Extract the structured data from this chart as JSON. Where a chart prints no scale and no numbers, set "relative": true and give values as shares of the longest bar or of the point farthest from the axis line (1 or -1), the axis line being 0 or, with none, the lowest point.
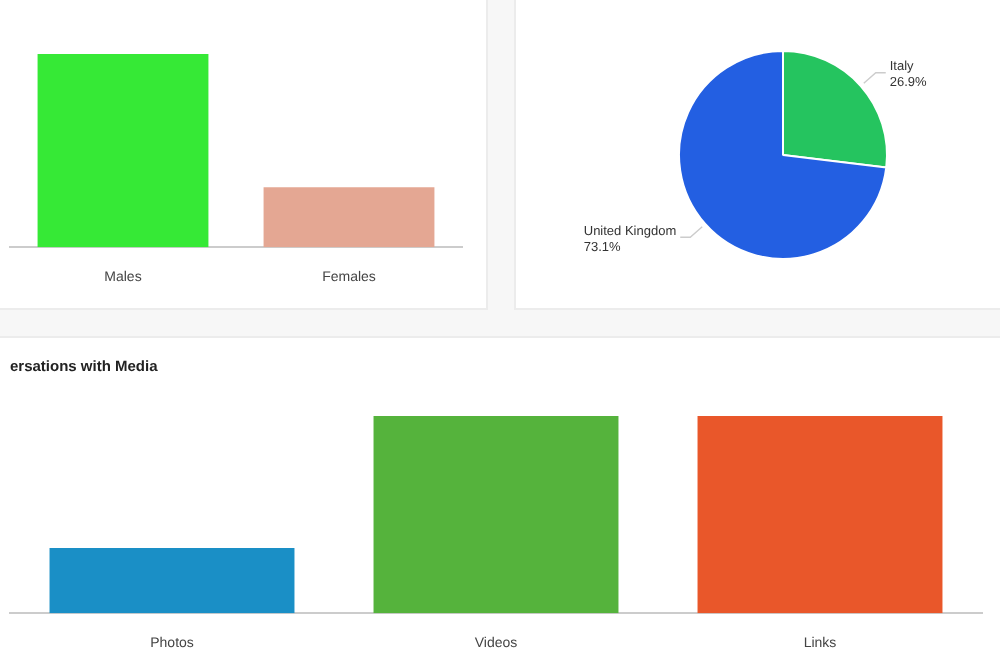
{
  "chart_data": [
    {
      "type": "bar",
      "relative": true,
      "categories": [
        "Males",
        "Females"
      ],
      "values": [
        1,
        0.31
      ],
      "colors": [
        "#36e936",
        "#e4a793"
      ]
    },
    {
      "type": "pie",
      "categories": [
        "Italy",
        "United Kingdom"
      ],
      "values": [
        26.9,
        73.1
      ],
      "value_labels": [
        "26.9%",
        "73.1%"
      ],
      "colors": [
        "#25c45f",
        "#235fe2"
      ]
    },
    {
      "type": "bar",
      "relative": true,
      "title": "ersations with Media",
      "categories": [
        "Photos",
        "Videos",
        "Links"
      ],
      "values": [
        0.33,
        1,
        1
      ],
      "colors": [
        "#1a8fc6",
        "#55b33c",
        "#e9572a"
      ]
    }
  ]
}
